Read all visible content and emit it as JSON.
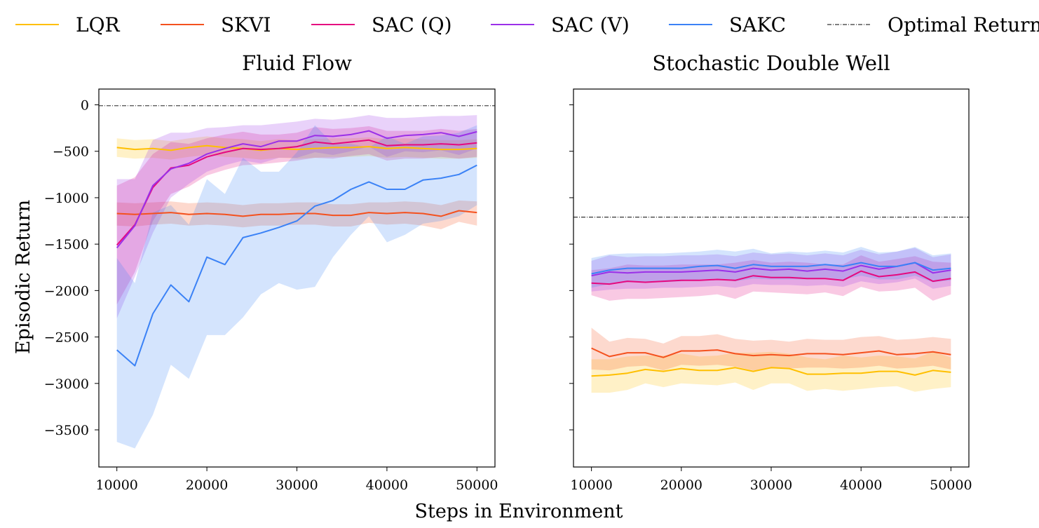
{
  "legend": [
    {
      "name": "LQR",
      "color": "#ffbf00",
      "dashed": false
    },
    {
      "name": "SKVI",
      "color": "#f4511e",
      "dashed": false
    },
    {
      "name": "SAC (Q)",
      "color": "#e5097f",
      "dashed": false
    },
    {
      "name": "SAC (V)",
      "color": "#9b30e8",
      "dashed": false
    },
    {
      "name": "SAKC",
      "color": "#3b82f6",
      "dashed": false
    },
    {
      "name": "Optimal Return",
      "color": "#000000",
      "dashed": true
    }
  ],
  "shared_xlabel": "Steps in Environment",
  "shared_ylabel": "Episodic Return",
  "chart_data": [
    {
      "type": "line",
      "title": "Fluid Flow",
      "xlabel": "Steps in Environment",
      "ylabel": "Episodic Return",
      "xlim": [
        8000,
        52000
      ],
      "ylim": [
        -3900,
        170
      ],
      "xticks": [
        10000,
        20000,
        30000,
        40000,
        50000
      ],
      "xtick_labels": [
        "10000",
        "20000",
        "30000",
        "40000",
        "50000"
      ],
      "yticks": [
        0,
        -500,
        -1000,
        -1500,
        -2000,
        -2500,
        -3000,
        -3500
      ],
      "ytick_labels": [
        "0",
        "−500",
        "−1000",
        "−1500",
        "−2000",
        "−2500",
        "−3000",
        "−3500"
      ],
      "optimal_return": -10,
      "x": [
        10000,
        12000,
        14000,
        16000,
        18000,
        20000,
        22000,
        24000,
        26000,
        28000,
        30000,
        32000,
        34000,
        36000,
        38000,
        40000,
        42000,
        44000,
        46000,
        48000,
        50000
      ],
      "series": [
        {
          "name": "LQR",
          "color": "#ffbf00",
          "values": [
            -460,
            -480,
            -470,
            -490,
            -460,
            -440,
            -460,
            -470,
            -490,
            -470,
            -480,
            -470,
            -460,
            -460,
            -450,
            -470,
            -460,
            -470,
            -480,
            -480,
            -470
          ],
          "lower": [
            -560,
            -580,
            -570,
            -590,
            -560,
            -540,
            -560,
            -570,
            -590,
            -570,
            -580,
            -570,
            -560,
            -560,
            -550,
            -570,
            -560,
            -570,
            -580,
            -580,
            -570
          ],
          "upper": [
            -360,
            -380,
            -370,
            -390,
            -360,
            -340,
            -360,
            -370,
            -390,
            -370,
            -380,
            -370,
            -360,
            -360,
            -350,
            -370,
            -360,
            -370,
            -380,
            -380,
            -370
          ]
        },
        {
          "name": "SKVI",
          "color": "#f4511e",
          "values": [
            -1170,
            -1180,
            -1170,
            -1160,
            -1180,
            -1170,
            -1180,
            -1200,
            -1180,
            -1180,
            -1170,
            -1170,
            -1190,
            -1190,
            -1160,
            -1170,
            -1160,
            -1170,
            -1200,
            -1140,
            -1160
          ],
          "lower": [
            -1300,
            -1310,
            -1290,
            -1280,
            -1300,
            -1290,
            -1300,
            -1320,
            -1300,
            -1300,
            -1290,
            -1290,
            -1310,
            -1310,
            -1270,
            -1290,
            -1280,
            -1300,
            -1340,
            -1260,
            -1300
          ],
          "upper": [
            -1050,
            -1060,
            -1050,
            -1040,
            -1060,
            -1050,
            -1060,
            -1080,
            -1060,
            -1060,
            -1050,
            -1050,
            -1070,
            -1070,
            -1050,
            -1050,
            -1040,
            -1050,
            -1080,
            -1030,
            -1040
          ]
        },
        {
          "name": "SAC (Q)",
          "color": "#e5097f",
          "values": [
            -1510,
            -1290,
            -890,
            -680,
            -650,
            -560,
            -510,
            -470,
            -480,
            -470,
            -450,
            -400,
            -420,
            -400,
            -380,
            -440,
            -430,
            -430,
            -420,
            -430,
            -410
          ],
          "lower": [
            -2150,
            -1800,
            -1250,
            -960,
            -880,
            -760,
            -700,
            -650,
            -640,
            -620,
            -600,
            -570,
            -580,
            -550,
            -530,
            -600,
            -580,
            -580,
            -560,
            -580,
            -560
          ],
          "upper": [
            -870,
            -780,
            -530,
            -400,
            -420,
            -360,
            -320,
            -290,
            -320,
            -320,
            -300,
            -240,
            -260,
            -250,
            -230,
            -280,
            -280,
            -280,
            -260,
            -280,
            -260
          ]
        },
        {
          "name": "SAC (V)",
          "color": "#9b30e8",
          "values": [
            -1540,
            -1300,
            -870,
            -690,
            -630,
            -530,
            -470,
            -420,
            -450,
            -390,
            -390,
            -330,
            -340,
            -320,
            -280,
            -360,
            -330,
            -320,
            -300,
            -340,
            -290
          ],
          "lower": [
            -2300,
            -1850,
            -1380,
            -1000,
            -850,
            -720,
            -650,
            -600,
            -630,
            -570,
            -570,
            -510,
            -540,
            -500,
            -450,
            -560,
            -500,
            -510,
            -490,
            -540,
            -470
          ],
          "upper": [
            -800,
            -800,
            -380,
            -300,
            -300,
            -250,
            -240,
            -220,
            -220,
            -200,
            -180,
            -150,
            -160,
            -140,
            -110,
            -140,
            -140,
            -130,
            -120,
            -120,
            -110
          ]
        },
        {
          "name": "SAKC",
          "color": "#3b82f6",
          "values": [
            -2640,
            -2810,
            -2250,
            -1940,
            -2120,
            -1640,
            -1720,
            -1430,
            -1380,
            -1320,
            -1250,
            -1090,
            -1030,
            -910,
            -830,
            -910,
            -910,
            -810,
            -790,
            -750,
            -650
          ],
          "lower": [
            -3630,
            -3700,
            -3340,
            -2800,
            -2950,
            -2480,
            -2480,
            -2290,
            -2040,
            -1920,
            -1990,
            -1960,
            -1640,
            -1400,
            -1200,
            -1480,
            -1400,
            -1280,
            -1250,
            -1200,
            -1080
          ],
          "upper": [
            -1650,
            -1920,
            -1160,
            -1080,
            -1290,
            -800,
            -960,
            -570,
            -720,
            -720,
            -510,
            -220,
            -420,
            -420,
            -460,
            -340,
            -420,
            -340,
            -330,
            -300,
            -220
          ]
        }
      ]
    },
    {
      "type": "line",
      "title": "Stochastic Double Well",
      "xlabel": "Steps in Environment",
      "ylabel": "Episodic Return",
      "xlim": [
        8000,
        52000
      ],
      "ylim": [
        -3900,
        170
      ],
      "xticks": [
        10000,
        20000,
        30000,
        40000,
        50000
      ],
      "xtick_labels": [
        "10000",
        "20000",
        "30000",
        "40000",
        "50000"
      ],
      "yticks": [
        0,
        -500,
        -1000,
        -1500,
        -2000,
        -2500,
        -3000,
        -3500
      ],
      "ytick_labels": [],
      "optimal_return": -1210,
      "x": [
        10000,
        12000,
        14000,
        16000,
        18000,
        20000,
        22000,
        24000,
        26000,
        28000,
        30000,
        32000,
        34000,
        36000,
        38000,
        40000,
        42000,
        44000,
        46000,
        48000,
        50000
      ],
      "series": [
        {
          "name": "LQR",
          "color": "#ffbf00",
          "values": [
            -2920,
            -2910,
            -2890,
            -2850,
            -2870,
            -2840,
            -2860,
            -2860,
            -2830,
            -2870,
            -2830,
            -2840,
            -2900,
            -2900,
            -2890,
            -2890,
            -2870,
            -2870,
            -2910,
            -2860,
            -2880
          ],
          "lower": [
            -3100,
            -3100,
            -3070,
            -3000,
            -3040,
            -3000,
            -3010,
            -3020,
            -2990,
            -3070,
            -3000,
            -3000,
            -3080,
            -3060,
            -3080,
            -3060,
            -3040,
            -3030,
            -3090,
            -3060,
            -3040
          ],
          "upper": [
            -2740,
            -2740,
            -2710,
            -2700,
            -2700,
            -2680,
            -2710,
            -2700,
            -2670,
            -2670,
            -2660,
            -2680,
            -2720,
            -2740,
            -2700,
            -2720,
            -2700,
            -2710,
            -2730,
            -2660,
            -2720
          ]
        },
        {
          "name": "SKVI",
          "color": "#f4511e",
          "values": [
            -2620,
            -2710,
            -2670,
            -2670,
            -2720,
            -2650,
            -2650,
            -2640,
            -2680,
            -2700,
            -2690,
            -2700,
            -2680,
            -2680,
            -2690,
            -2670,
            -2650,
            -2690,
            -2680,
            -2660,
            -2690
          ],
          "lower": [
            -2850,
            -2860,
            -2820,
            -2810,
            -2860,
            -2800,
            -2810,
            -2800,
            -2820,
            -2860,
            -2840,
            -2840,
            -2830,
            -2830,
            -2840,
            -2830,
            -2810,
            -2840,
            -2830,
            -2810,
            -2850
          ],
          "upper": [
            -2400,
            -2550,
            -2510,
            -2520,
            -2570,
            -2490,
            -2490,
            -2470,
            -2520,
            -2540,
            -2530,
            -2550,
            -2520,
            -2530,
            -2530,
            -2500,
            -2490,
            -2530,
            -2520,
            -2500,
            -2520
          ]
        },
        {
          "name": "SAC (Q)",
          "color": "#e5097f",
          "values": [
            -1920,
            -1930,
            -1900,
            -1910,
            -1900,
            -1890,
            -1890,
            -1880,
            -1890,
            -1840,
            -1860,
            -1860,
            -1870,
            -1870,
            -1890,
            -1790,
            -1850,
            -1830,
            -1800,
            -1900,
            -1870
          ],
          "lower": [
            -2050,
            -2110,
            -2090,
            -2090,
            -2080,
            -2070,
            -2060,
            -2040,
            -2090,
            -2010,
            -2020,
            -2030,
            -2040,
            -2020,
            -2060,
            -1960,
            -2010,
            -2000,
            -1970,
            -2110,
            -2040
          ],
          "upper": [
            -1780,
            -1760,
            -1720,
            -1730,
            -1730,
            -1720,
            -1720,
            -1720,
            -1700,
            -1670,
            -1700,
            -1690,
            -1700,
            -1720,
            -1720,
            -1620,
            -1690,
            -1660,
            -1630,
            -1690,
            -1700
          ]
        },
        {
          "name": "SAC (V)",
          "color": "#9b30e8",
          "values": [
            -1840,
            -1800,
            -1810,
            -1800,
            -1800,
            -1800,
            -1790,
            -1780,
            -1800,
            -1760,
            -1780,
            -1770,
            -1790,
            -1770,
            -1790,
            -1730,
            -1770,
            -1740,
            -1700,
            -1810,
            -1780
          ],
          "lower": [
            -2010,
            -1990,
            -1980,
            -1980,
            -1970,
            -1970,
            -1960,
            -1950,
            -1970,
            -1930,
            -1940,
            -1940,
            -1950,
            -1940,
            -1960,
            -1900,
            -1930,
            -1910,
            -1870,
            -1980,
            -1950
          ],
          "upper": [
            -1680,
            -1620,
            -1640,
            -1630,
            -1630,
            -1620,
            -1620,
            -1610,
            -1630,
            -1590,
            -1610,
            -1600,
            -1620,
            -1600,
            -1620,
            -1560,
            -1610,
            -1580,
            -1540,
            -1640,
            -1610
          ]
        },
        {
          "name": "SAKC",
          "color": "#3b82f6",
          "values": [
            -1820,
            -1780,
            -1760,
            -1760,
            -1760,
            -1760,
            -1740,
            -1730,
            -1760,
            -1720,
            -1740,
            -1740,
            -1740,
            -1720,
            -1740,
            -1700,
            -1740,
            -1740,
            -1700,
            -1780,
            -1760
          ],
          "lower": [
            -1970,
            -1930,
            -1910,
            -1910,
            -1910,
            -1900,
            -1880,
            -1870,
            -1900,
            -1870,
            -1880,
            -1880,
            -1880,
            -1860,
            -1880,
            -1840,
            -1880,
            -1880,
            -1840,
            -1910,
            -1890
          ],
          "upper": [
            -1650,
            -1610,
            -1600,
            -1600,
            -1600,
            -1590,
            -1580,
            -1560,
            -1580,
            -1550,
            -1600,
            -1580,
            -1590,
            -1570,
            -1590,
            -1530,
            -1590,
            -1580,
            -1530,
            -1620,
            -1600
          ]
        }
      ]
    }
  ]
}
